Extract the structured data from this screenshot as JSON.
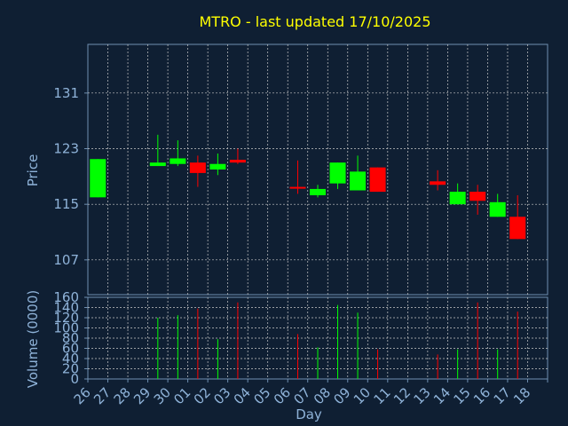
{
  "chart_data": {
    "type": "candlestick",
    "title": "MTRO - last updated 17/10/2025",
    "xlabel": "Day",
    "price_panel": {
      "ylabel": "Price",
      "yticks": [
        107,
        115,
        123,
        131
      ],
      "ylim": [
        102,
        138
      ],
      "grid": true
    },
    "volume_panel": {
      "ylabel": "Volume (0000)",
      "yticks": [
        0,
        20,
        40,
        60,
        80,
        100,
        120,
        140,
        160
      ],
      "ylim": [
        0,
        160
      ],
      "grid": true
    },
    "categories": [
      "26",
      "27",
      "28",
      "29",
      "30",
      "01",
      "02",
      "03",
      "04",
      "05",
      "06",
      "07",
      "08",
      "09",
      "10",
      "11",
      "12",
      "13",
      "14",
      "15",
      "16",
      "17",
      "18"
    ],
    "candles": [
      {
        "date": "26",
        "open": 116.0,
        "close": 121.5,
        "high": 121.5,
        "low": 116.0,
        "volume": 0
      },
      {
        "date": "29",
        "open": 120.5,
        "close": 121.0,
        "high": 125.0,
        "low": 120.5,
        "volume": 120
      },
      {
        "date": "30",
        "open": 120.8,
        "close": 121.6,
        "high": 124.2,
        "low": 120.5,
        "volume": 125
      },
      {
        "date": "01",
        "open": 121.0,
        "close": 119.5,
        "high": 122.0,
        "low": 117.5,
        "volume": 138
      },
      {
        "date": "02",
        "open": 120.0,
        "close": 120.8,
        "high": 122.3,
        "low": 119.2,
        "volume": 78
      },
      {
        "date": "03",
        "open": 121.4,
        "close": 121.0,
        "high": 123.0,
        "low": 120.8,
        "volume": 150
      },
      {
        "date": "06",
        "open": 117.5,
        "close": 117.3,
        "high": 121.3,
        "low": 116.5,
        "volume": 88
      },
      {
        "date": "07",
        "open": 116.3,
        "close": 117.2,
        "high": 117.8,
        "low": 116.0,
        "volume": 62
      },
      {
        "date": "08",
        "open": 118.0,
        "close": 121.0,
        "high": 121.0,
        "low": 117.2,
        "volume": 145
      },
      {
        "date": "09",
        "open": 117.0,
        "close": 119.7,
        "high": 122.0,
        "low": 117.0,
        "volume": 130
      },
      {
        "date": "10",
        "open": 120.3,
        "close": 116.8,
        "high": 120.3,
        "low": 116.8,
        "volume": 58
      },
      {
        "date": "13",
        "open": 118.3,
        "close": 117.8,
        "high": 119.9,
        "low": 117.0,
        "volume": 48
      },
      {
        "date": "14",
        "open": 115.0,
        "close": 116.8,
        "high": 118.0,
        "low": 115.0,
        "volume": 58
      },
      {
        "date": "15",
        "open": 116.8,
        "close": 115.5,
        "high": 117.8,
        "low": 113.5,
        "volume": 150
      },
      {
        "date": "16",
        "open": 113.2,
        "close": 115.3,
        "high": 116.5,
        "low": 113.2,
        "volume": 58
      },
      {
        "date": "17",
        "open": 113.2,
        "close": 110.0,
        "high": 116.3,
        "low": 110.0,
        "volume": 132
      }
    ],
    "colors": {
      "up": "#00ff00",
      "down": "#ff0000",
      "grid": "#c8c8c8",
      "axes_frame": "#6f8fb0",
      "panel_bg": "#0f1f33",
      "title": "#ffff00",
      "axis_text": "#8fb3d9"
    }
  }
}
